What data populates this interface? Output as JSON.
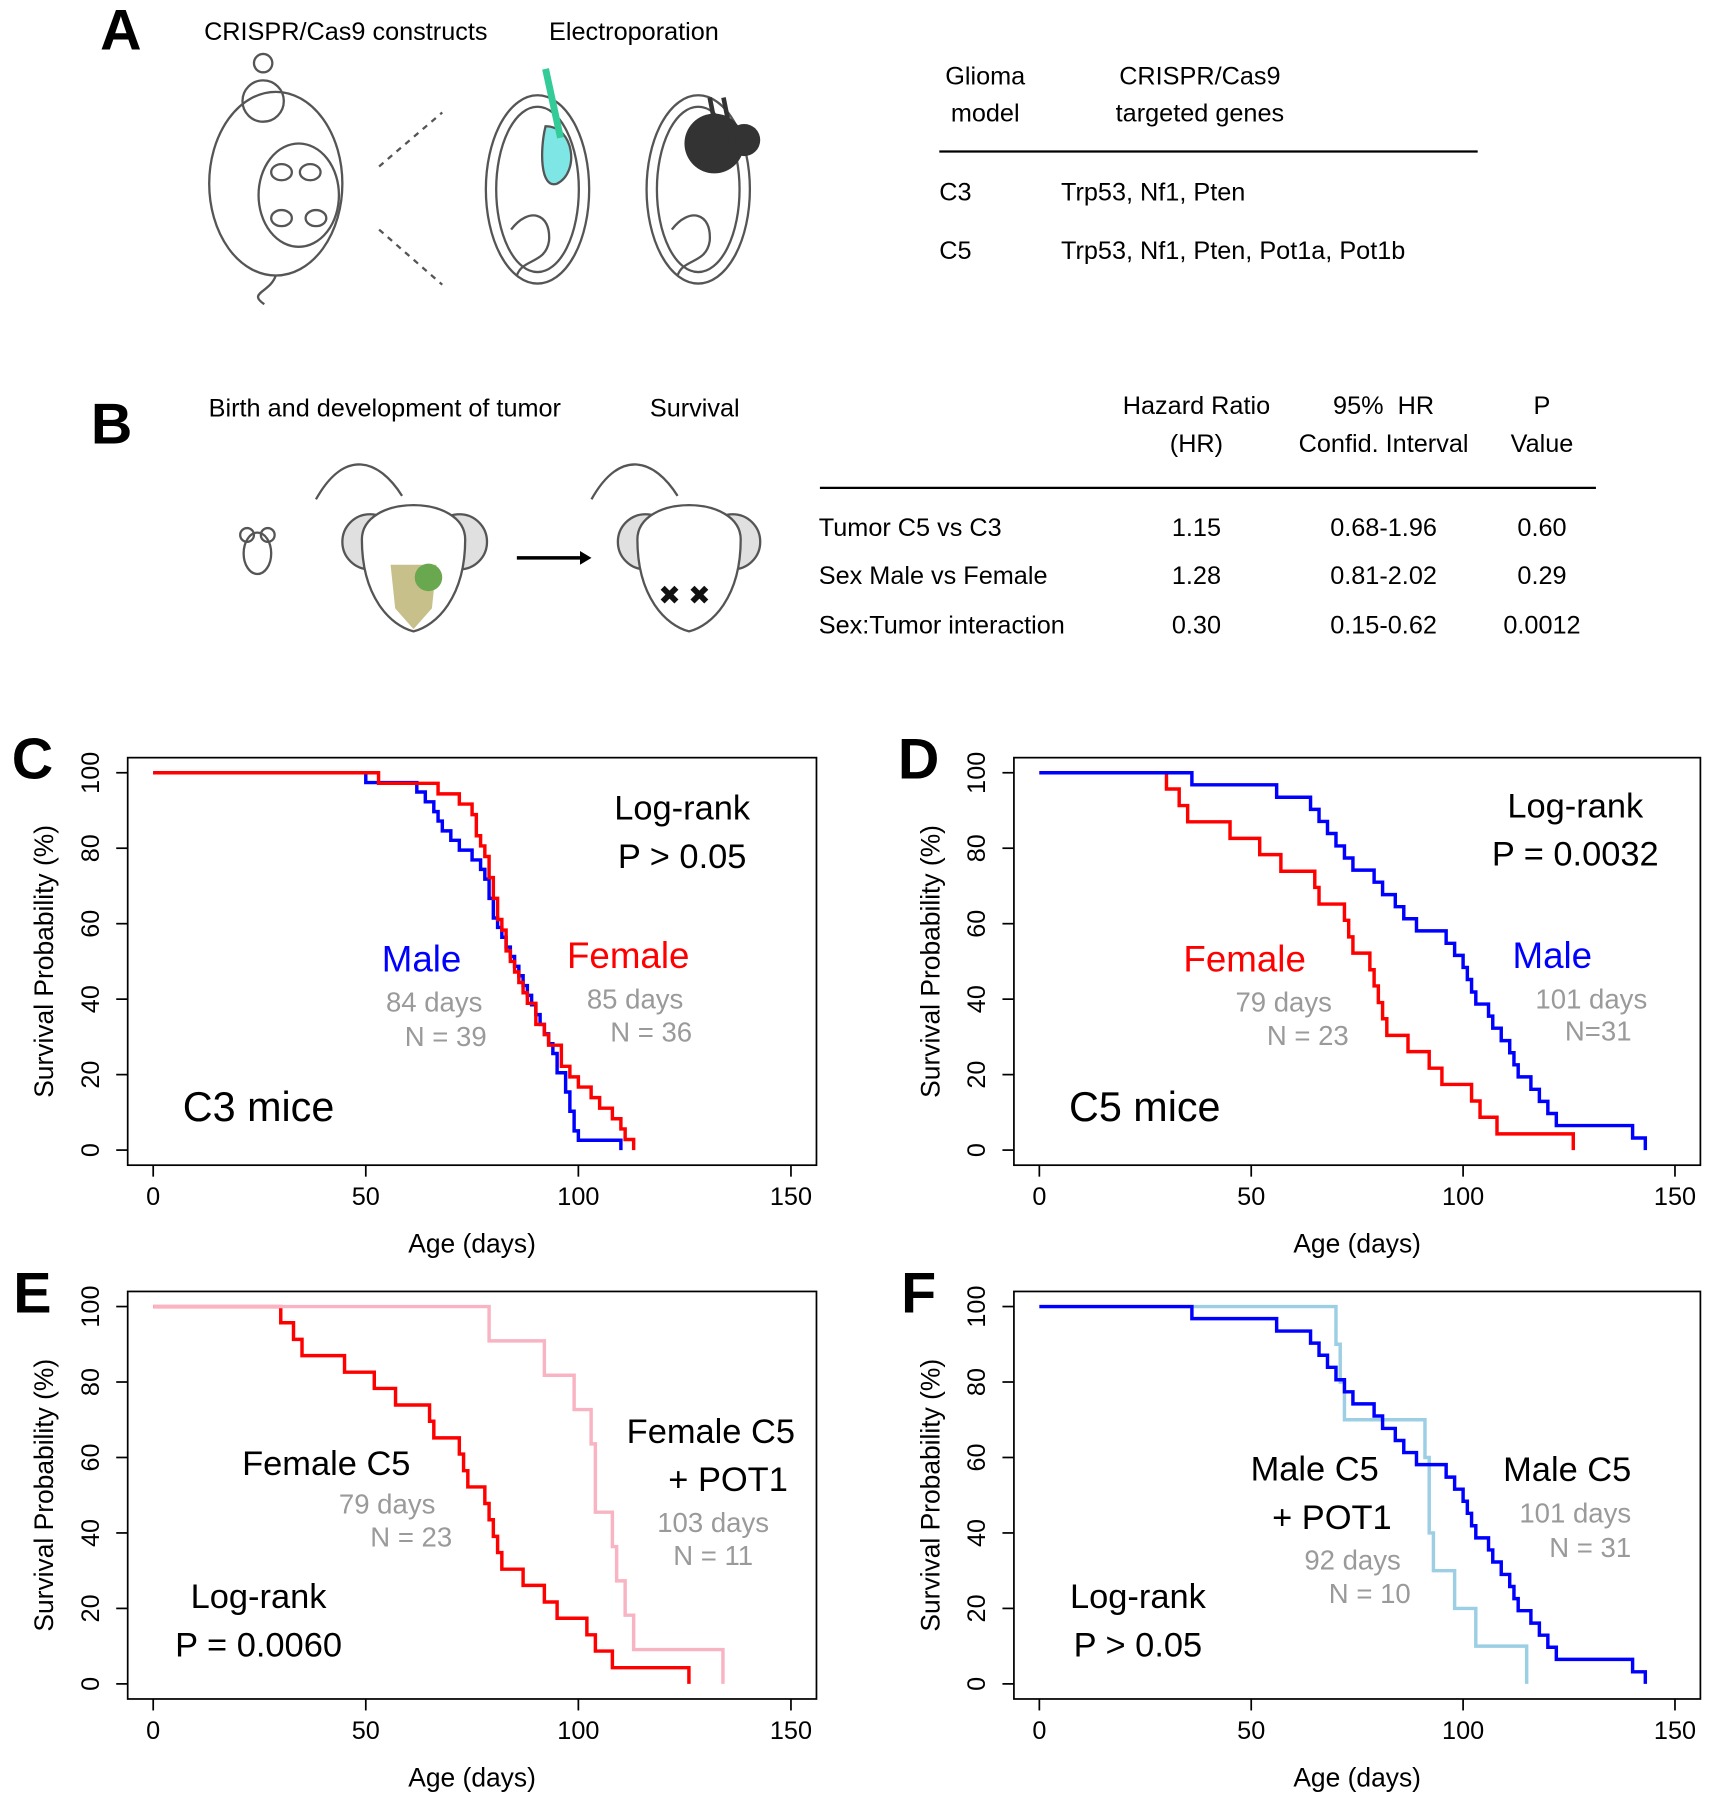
{
  "panel_a": {
    "label": "A",
    "steps": [
      "CRISPR/Cas9 constructs",
      "Electroporation"
    ],
    "table": {
      "header": [
        [
          "Glioma",
          "model"
        ],
        [
          "CRISPR/Cas9",
          "targeted genes"
        ]
      ],
      "rows": [
        [
          "C3",
          "Trp53, Nf1, Pten"
        ],
        [
          "C5",
          "Trp53, Nf1, Pten, Pot1a, Pot1b"
        ]
      ]
    }
  },
  "panel_b": {
    "label": "B",
    "steps": [
      "Birth and development of tumor",
      "Survival"
    ],
    "table": {
      "header": [
        [
          "Hazard Ratio",
          "(HR)"
        ],
        [
          "95%  HR",
          "Confid. Interval"
        ],
        [
          "P",
          "Value"
        ]
      ],
      "rows": [
        [
          "Tumor C5 vs C3",
          "1.15",
          "0.68-1.96",
          "0.60"
        ],
        [
          "Sex Male vs Female",
          "1.28",
          "0.81-2.02",
          "0.29"
        ],
        [
          "Sex:Tumor interaction",
          "0.30",
          "0.15-0.62",
          "0.0012"
        ]
      ]
    }
  },
  "chart_data": [
    {
      "type": "step",
      "label": "C",
      "subtitle": "C3 mice",
      "xlabel": "Age (days)",
      "ylabel": "Survival Probability (%)",
      "xlim": [
        -6,
        156
      ],
      "ylim": [
        -4,
        104
      ],
      "xticks": [
        0,
        50,
        100,
        150
      ],
      "yticks": [
        0,
        20,
        40,
        60,
        80,
        100
      ],
      "test": "Log-rank",
      "p_label": "P > 0.05",
      "series": [
        {
          "name": "Male",
          "color": "#0000ff",
          "median_label": "84 days",
          "n_label": "N = 39",
          "x": [
            0,
            50,
            62,
            64,
            66,
            67,
            68,
            70,
            72,
            75,
            77,
            78,
            79,
            80,
            81,
            82,
            83,
            84,
            85,
            86,
            87,
            88,
            89,
            90,
            91,
            92,
            93,
            94,
            95,
            97,
            98,
            99,
            100,
            110
          ],
          "values": [
            100,
            97.4,
            94.9,
            92.3,
            89.7,
            87.2,
            84.6,
            82.1,
            79.5,
            76.9,
            74.4,
            71.8,
            66.7,
            61.5,
            59,
            56.4,
            53.8,
            51.3,
            48.7,
            46.2,
            43.6,
            41,
            38.5,
            35.9,
            33.3,
            30.8,
            28.2,
            25.6,
            20.5,
            15.4,
            10.3,
            5.1,
            2.6,
            0
          ]
        },
        {
          "name": "Female",
          "color": "#ff0000",
          "median_label": "85 days",
          "n_label": "N = 36",
          "x": [
            0,
            53,
            67,
            72,
            75,
            76,
            77,
            78,
            79,
            80,
            81,
            82,
            83,
            84,
            85,
            86,
            87,
            88,
            90,
            92,
            93,
            96,
            98,
            100,
            103,
            105,
            108,
            110,
            111,
            113
          ],
          "values": [
            100,
            97.2,
            94.4,
            91.7,
            88.9,
            83.3,
            80.6,
            77.8,
            72.2,
            66.7,
            61.1,
            58.3,
            52.8,
            50,
            47.2,
            44.4,
            41.7,
            38.9,
            33.3,
            30.6,
            27.8,
            22.2,
            19.4,
            16.7,
            13.9,
            11.1,
            8.3,
            5.6,
            2.8,
            0
          ]
        }
      ]
    },
    {
      "type": "step",
      "label": "D",
      "subtitle": "C5 mice",
      "xlabel": "Age (days)",
      "ylabel": "Survival Probability (%)",
      "xlim": [
        -6,
        156
      ],
      "ylim": [
        -4,
        104
      ],
      "xticks": [
        0,
        50,
        100,
        150
      ],
      "yticks": [
        0,
        20,
        40,
        60,
        80,
        100
      ],
      "test": "Log-rank",
      "p_label": "P = 0.0032",
      "series": [
        {
          "name": "Female",
          "color": "#ff0000",
          "median_label": "79 days",
          "n_label": "N = 23",
          "x": [
            0,
            30,
            33,
            35,
            45,
            52,
            57,
            65,
            66,
            72,
            73,
            74,
            78,
            79,
            80,
            81,
            82,
            87,
            92,
            95,
            102,
            104,
            108,
            126
          ],
          "values": [
            100,
            95.7,
            91.3,
            87,
            82.6,
            78.3,
            73.9,
            69.6,
            65.2,
            60.9,
            56.5,
            52.2,
            47.8,
            43.5,
            39.1,
            34.8,
            30.4,
            26.1,
            21.7,
            17.4,
            13,
            8.7,
            4.3,
            0
          ]
        },
        {
          "name": "Male",
          "color": "#0000ff",
          "median_label": "101 days",
          "n_label": "N=31",
          "x": [
            0,
            36,
            56,
            64,
            66,
            68,
            70,
            72,
            74,
            79,
            81,
            84,
            86,
            89,
            96,
            98,
            100,
            101,
            102,
            103,
            106,
            107,
            109,
            111,
            112,
            113,
            116,
            118,
            120,
            122,
            140,
            143
          ],
          "values": [
            100,
            96.8,
            93.5,
            90.3,
            87.1,
            83.9,
            80.6,
            77.4,
            74.2,
            71,
            67.7,
            64.5,
            61.3,
            58.1,
            54.8,
            51.6,
            48.4,
            45.2,
            41.9,
            38.7,
            35.5,
            32.3,
            29,
            25.8,
            22.6,
            19.4,
            16.1,
            12.9,
            9.7,
            6.5,
            3.2,
            0
          ]
        }
      ]
    },
    {
      "type": "step",
      "label": "E",
      "xlabel": "Age (days)",
      "ylabel": "Survival Probability (%)",
      "xlim": [
        -6,
        156
      ],
      "ylim": [
        -4,
        104
      ],
      "xticks": [
        0,
        50,
        100,
        150
      ],
      "yticks": [
        0,
        20,
        40,
        60,
        80,
        100
      ],
      "test": "Log-rank",
      "p_label": "P = 0.0060",
      "series": [
        {
          "name": "Female C5",
          "color": "#ff0000",
          "median_label": "79 days",
          "n_label": "N = 23",
          "x": [
            0,
            30,
            33,
            35,
            45,
            52,
            57,
            65,
            66,
            72,
            73,
            74,
            78,
            79,
            80,
            81,
            82,
            87,
            92,
            95,
            102,
            104,
            108,
            126
          ],
          "values": [
            100,
            95.7,
            91.3,
            87,
            82.6,
            78.3,
            73.9,
            69.6,
            65.2,
            60.9,
            56.5,
            52.2,
            47.8,
            43.5,
            39.1,
            34.8,
            30.4,
            26.1,
            21.7,
            17.4,
            13,
            8.7,
            4.3,
            0
          ]
        },
        {
          "name": "Female C5 + POT1",
          "color": "#f8b4c3",
          "median_label": "103 days",
          "n_label": "N = 11",
          "x": [
            0,
            79,
            92,
            99,
            103,
            104,
            108,
            109,
            111,
            113,
            134
          ],
          "values": [
            100,
            90.9,
            81.8,
            72.7,
            63.6,
            45.5,
            36.4,
            27.3,
            18.2,
            9.1,
            0
          ]
        }
      ]
    },
    {
      "type": "step",
      "label": "F",
      "xlabel": "Age (days)",
      "ylabel": "Survival Probability (%)",
      "xlim": [
        -6,
        156
      ],
      "ylim": [
        -4,
        104
      ],
      "xticks": [
        0,
        50,
        100,
        150
      ],
      "yticks": [
        0,
        20,
        40,
        60,
        80,
        100
      ],
      "test": "Log-rank",
      "p_label": "P > 0.05",
      "series": [
        {
          "name": "Male C5 + POT1",
          "color": "#9ccfe3",
          "median_label": "92 days",
          "n_label": "N = 10",
          "x": [
            0,
            70,
            71,
            72,
            91,
            92,
            93,
            98,
            103,
            115
          ],
          "values": [
            100,
            90,
            80,
            70,
            60,
            40,
            30,
            20,
            10,
            0
          ]
        },
        {
          "name": "Male C5",
          "color": "#0000ff",
          "median_label": "101 days",
          "n_label": "N = 31",
          "x": [
            0,
            36,
            56,
            64,
            66,
            68,
            70,
            72,
            74,
            79,
            81,
            84,
            86,
            89,
            96,
            98,
            100,
            101,
            102,
            103,
            106,
            107,
            109,
            111,
            112,
            113,
            116,
            118,
            120,
            122,
            140,
            143
          ],
          "values": [
            100,
            96.8,
            93.5,
            90.3,
            87.1,
            83.9,
            80.6,
            77.4,
            74.2,
            71,
            67.7,
            64.5,
            61.3,
            58.1,
            54.8,
            51.6,
            48.4,
            45.2,
            41.9,
            38.7,
            35.5,
            32.3,
            29,
            25.8,
            22.6,
            19.4,
            16.1,
            12.9,
            9.7,
            6.5,
            3.2,
            0
          ]
        }
      ]
    }
  ]
}
